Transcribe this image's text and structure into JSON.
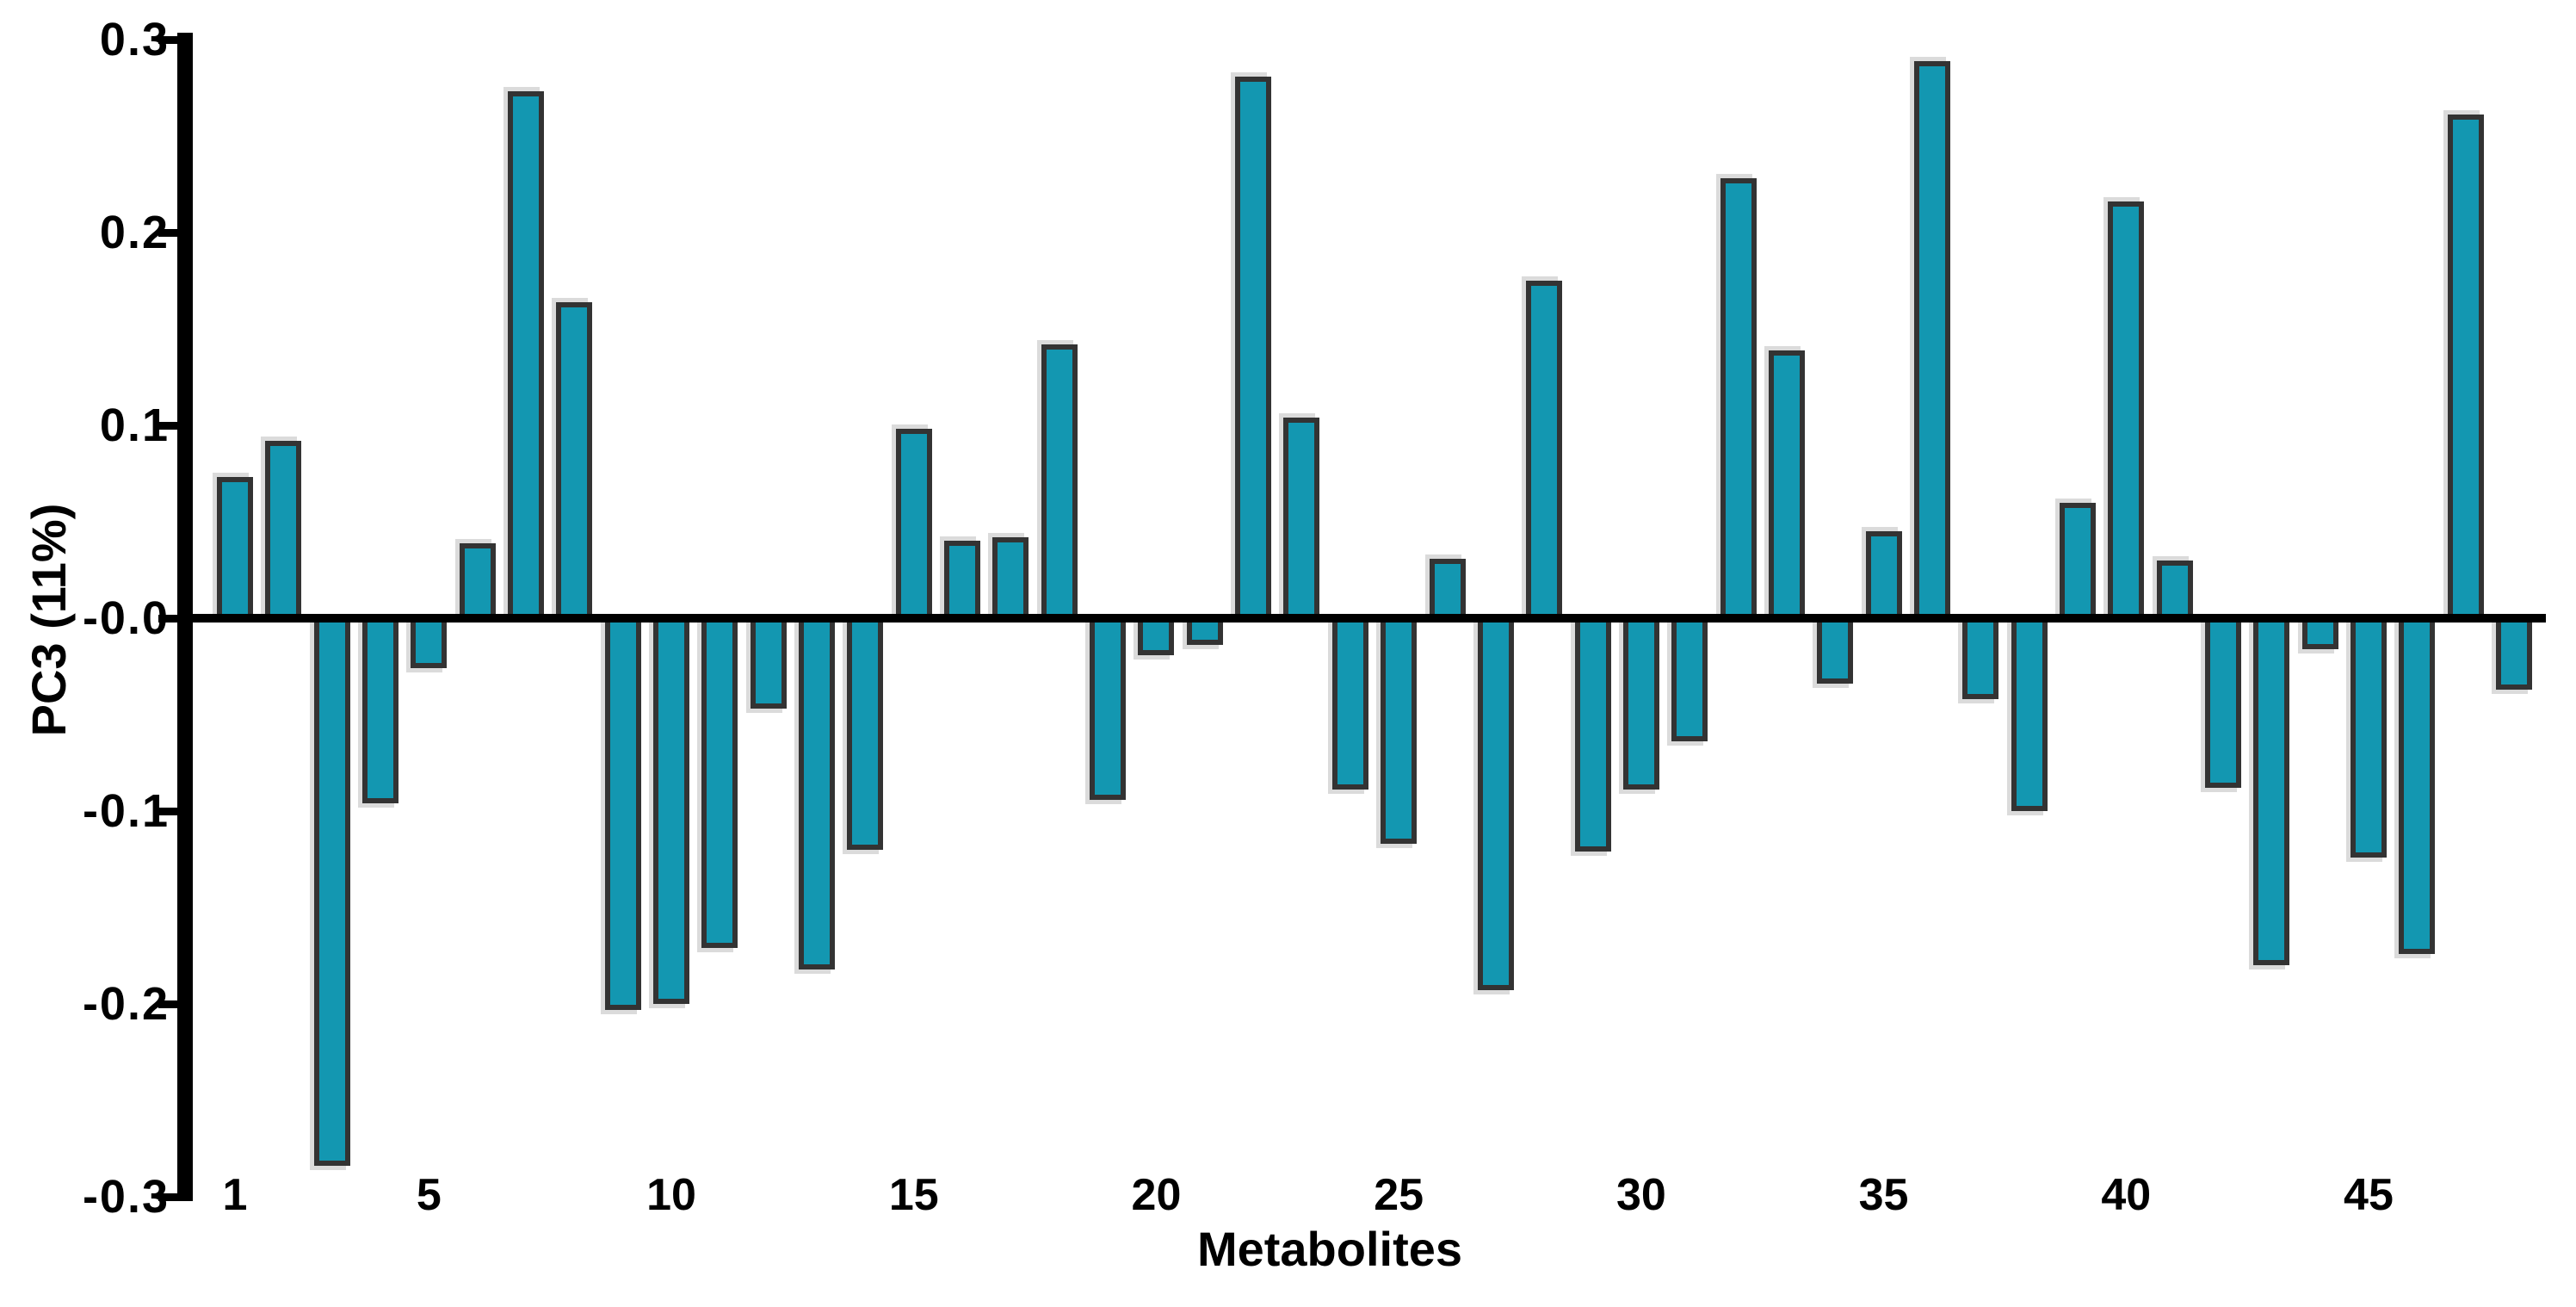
{
  "chart_data": {
    "type": "bar",
    "title": "",
    "xlabel": "Metabolites",
    "ylabel": "PC3 (11%)",
    "ylim": [
      -0.3,
      0.3
    ],
    "ytick_labels": [
      "0.3",
      "0.2",
      "0.1",
      "-0.0",
      "-0.1",
      "-0.2",
      "-0.3"
    ],
    "ytick_values": [
      0.3,
      0.2,
      0.1,
      0.0,
      -0.1,
      -0.2,
      -0.3
    ],
    "xtick_values": [
      1,
      5,
      10,
      15,
      20,
      25,
      30,
      35,
      40,
      45
    ],
    "x": [
      1,
      2,
      3,
      4,
      5,
      6,
      7,
      8,
      9,
      10,
      11,
      12,
      13,
      14,
      15,
      16,
      17,
      18,
      19,
      20,
      21,
      22,
      23,
      24,
      25,
      26,
      27,
      28,
      29,
      30,
      31,
      32,
      33,
      34,
      35,
      36,
      37,
      38,
      39,
      40,
      41,
      42,
      43,
      44,
      45,
      46,
      47,
      48
    ],
    "values": [
      0.073,
      0.092,
      -0.284,
      -0.096,
      -0.026,
      0.039,
      0.273,
      0.164,
      -0.203,
      -0.2,
      -0.171,
      -0.047,
      -0.182,
      -0.12,
      0.098,
      0.04,
      0.042,
      0.142,
      -0.094,
      -0.019,
      -0.014,
      0.281,
      0.104,
      -0.089,
      -0.117,
      0.031,
      -0.193,
      0.175,
      -0.121,
      -0.089,
      -0.064,
      0.228,
      0.139,
      -0.034,
      0.045,
      0.289,
      -0.042,
      -0.1,
      0.06,
      0.216,
      0.03,
      -0.088,
      -0.18,
      -0.016,
      -0.124,
      -0.174,
      0.261,
      -0.037
    ],
    "grid": false,
    "legend": null,
    "colors": {
      "bar_fill": "#1397B1",
      "bar_border": "#333333",
      "bar_shadow": "rgba(195,195,195,0.6)",
      "axis": "#000000",
      "text": "#000000",
      "background": "#ffffff"
    }
  }
}
